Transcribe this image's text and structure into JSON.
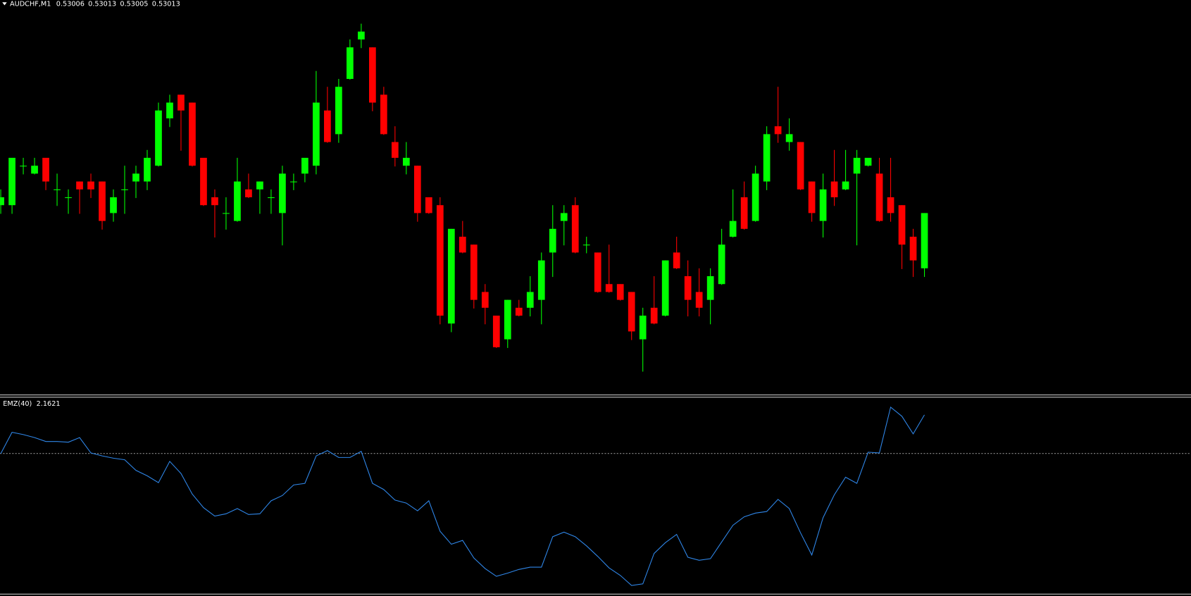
{
  "chart_data": [
    {
      "type": "candlestick",
      "title": "AUDCHF,M1",
      "bull_color": "#00ff00",
      "bear_color": "#ff0000",
      "ylim": [
        0.5299,
        0.5304
      ],
      "open": [
        0.53014,
        0.53014,
        0.53019,
        0.53018,
        0.5302,
        0.53016,
        0.53015,
        0.53017,
        0.53017,
        0.53017,
        0.53013,
        0.53016,
        0.53017,
        0.53017,
        0.53019,
        0.53025,
        0.53028,
        0.53027,
        0.5302,
        0.53015,
        0.53013,
        0.53012,
        0.53016,
        0.53016,
        0.53015,
        0.53013,
        0.53017,
        0.53018,
        0.53019,
        0.53026,
        0.53023,
        0.5303,
        0.53035,
        0.53034,
        0.53028,
        0.53022,
        0.53019,
        0.53019,
        0.53015,
        0.53014,
        0.52999,
        0.5301,
        0.53009,
        0.53003,
        0.53,
        0.52997,
        0.53001,
        0.53001,
        0.53002,
        0.53008,
        0.53012,
        0.53014,
        0.53009,
        0.53008,
        0.53004,
        0.53004,
        0.53003,
        0.52997,
        0.53001,
        0.53,
        0.53008,
        0.53005,
        0.53003,
        0.53002,
        0.53004,
        0.5301,
        0.53015,
        0.53012,
        0.53017,
        0.53024,
        0.53022,
        0.53022,
        0.53017,
        0.53012,
        0.53017,
        0.53016,
        0.53018,
        0.53019,
        0.53018,
        0.53015,
        0.53014,
        0.5301,
        0.53006
      ],
      "high": [
        0.53016,
        0.5302,
        0.5302,
        0.5302,
        0.5302,
        0.53018,
        0.53016,
        0.53017,
        0.53018,
        0.53017,
        0.53016,
        0.53019,
        0.53019,
        0.53021,
        0.53027,
        0.53028,
        0.53028,
        0.53027,
        0.5302,
        0.53016,
        0.53015,
        0.5302,
        0.53018,
        0.53017,
        0.53016,
        0.53019,
        0.53018,
        0.5302,
        0.53031,
        0.53029,
        0.5303,
        0.53035,
        0.53037,
        0.53034,
        0.53029,
        0.53024,
        0.53022,
        0.53019,
        0.53015,
        0.53015,
        0.53011,
        0.53012,
        0.53009,
        0.53004,
        0.53,
        0.53002,
        0.53002,
        0.53005,
        0.53008,
        0.53014,
        0.53014,
        0.53015,
        0.5301,
        0.53008,
        0.53009,
        0.53004,
        0.53003,
        0.53001,
        0.53005,
        0.53007,
        0.5301,
        0.53007,
        0.53006,
        0.53006,
        0.53011,
        0.53016,
        0.53017,
        0.53019,
        0.53024,
        0.53029,
        0.53025,
        0.53022,
        0.53017,
        0.53018,
        0.53021,
        0.53021,
        0.53021,
        0.5302,
        0.5302,
        0.5302,
        0.53014,
        0.53011,
        0.53013
      ],
      "low": [
        0.53013,
        0.53013,
        0.53018,
        0.53018,
        0.53016,
        0.53014,
        0.53013,
        0.53013,
        0.53015,
        0.53011,
        0.53012,
        0.53013,
        0.53015,
        0.53016,
        0.53019,
        0.53024,
        0.53021,
        0.53019,
        0.53014,
        0.5301,
        0.53011,
        0.53012,
        0.53015,
        0.53013,
        0.53013,
        0.53009,
        0.53016,
        0.53017,
        0.53018,
        0.53022,
        0.53022,
        0.5303,
        0.53034,
        0.53026,
        0.53023,
        0.53019,
        0.53018,
        0.53012,
        0.53013,
        0.52999,
        0.52998,
        0.53008,
        0.53001,
        0.52999,
        0.52996,
        0.52996,
        0.53,
        0.53,
        0.52999,
        0.53005,
        0.53009,
        0.53008,
        0.53008,
        0.53003,
        0.53003,
        0.53002,
        0.52997,
        0.52993,
        0.52999,
        0.53,
        0.53006,
        0.53,
        0.53,
        0.52999,
        0.53004,
        0.5301,
        0.53011,
        0.53012,
        0.53016,
        0.53022,
        0.53021,
        0.53016,
        0.53012,
        0.5301,
        0.53014,
        0.53016,
        0.53009,
        0.53019,
        0.53012,
        0.53012,
        0.53006,
        0.53005,
        0.53005
      ],
      "close": [
        0.53015,
        0.5302,
        0.53019,
        0.53019,
        0.53017,
        0.53016,
        0.53015,
        0.53016,
        0.53016,
        0.53012,
        0.53015,
        0.53016,
        0.53018,
        0.5302,
        0.53026,
        0.53027,
        0.53026,
        0.53019,
        0.53014,
        0.53014,
        0.53013,
        0.53017,
        0.53015,
        0.53017,
        0.53015,
        0.53018,
        0.53017,
        0.5302,
        0.53027,
        0.53022,
        0.53029,
        0.53034,
        0.53036,
        0.53027,
        0.53023,
        0.5302,
        0.5302,
        0.53013,
        0.53013,
        0.53,
        0.53011,
        0.53008,
        0.53002,
        0.53001,
        0.52996,
        0.53002,
        0.53,
        0.53003,
        0.53007,
        0.53011,
        0.53013,
        0.53008,
        0.53009,
        0.53003,
        0.53003,
        0.53002,
        0.52998,
        0.53,
        0.52999,
        0.53007,
        0.53006,
        0.53002,
        0.53001,
        0.53005,
        0.53009,
        0.53012,
        0.53011,
        0.53018,
        0.53023,
        0.53023,
        0.53023,
        0.53016,
        0.53013,
        0.53016,
        0.53015,
        0.53017,
        0.5302,
        0.5302,
        0.53012,
        0.53013,
        0.53009,
        0.53007,
        0.53013
      ]
    },
    {
      "type": "line",
      "title": "EMZ(40)",
      "color": "#2f86e8",
      "ylim": [
        -8,
        3.1
      ],
      "levels": [
        0
      ],
      "values": [
        -0.04,
        1.17,
        1.04,
        0.87,
        0.65,
        0.65,
        0.61,
        0.87,
        0,
        -0.17,
        -0.3,
        -0.39,
        -0.99,
        -1.3,
        -1.69,
        -0.48,
        -1.17,
        -2.34,
        -3.11,
        -3.59,
        -3.46,
        -3.16,
        -3.5,
        -3.46,
        -2.72,
        -2.42,
        -1.82,
        -1.73,
        -0.17,
        0.13,
        -0.26,
        -0.26,
        0.09,
        -1.73,
        -2.08,
        -2.68,
        -2.85,
        -3.29,
        -2.72,
        -4.45,
        -5.19,
        -4.97,
        -5.97,
        -6.57,
        -7.01,
        -6.83,
        -6.62,
        -6.49,
        -6.49,
        -4.76,
        -4.5,
        -4.76,
        -5.28,
        -5.88,
        -6.53,
        -6.96,
        -7.53,
        -7.44,
        -5.71,
        -5.1,
        -4.63,
        -5.93,
        -6.1,
        -6.01,
        -5.06,
        -4.11,
        -3.63,
        -3.42,
        -3.33,
        -2.64,
        -3.16,
        -4.54,
        -5.8,
        -3.68,
        -2.38,
        -1.38,
        -1.73,
        0.04,
        0,
        2.6,
        2.08,
        1.08,
        2.1621
      ]
    }
  ]
}
